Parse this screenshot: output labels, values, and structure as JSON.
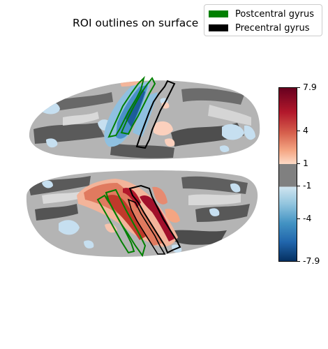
{
  "title": "ROI outlines on surface",
  "legend": [
    {
      "label": "Postcentral gyrus",
      "color": "#008000"
    },
    {
      "label": "Precentral gyrus",
      "color": "#000000"
    }
  ],
  "colorbar": {
    "colormap": "RdBu_r",
    "range": [
      -7.9,
      7.9
    ],
    "threshold_gray_band": [
      -1,
      1
    ],
    "tick_labels": [
      "7.9",
      "4",
      "1",
      "-1",
      "-4",
      "-7.9"
    ]
  }
}
